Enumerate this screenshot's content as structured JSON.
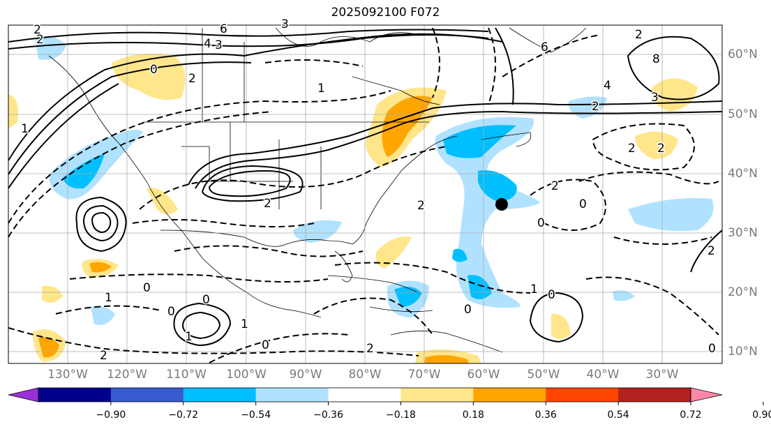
{
  "title": "2025092100 F072",
  "lon_labels": [
    "130°W",
    "120°W",
    "110°W",
    "100°W",
    "90°W",
    "80°W",
    "70°W",
    "60°W",
    "50°W",
    "40°W",
    "30°W"
  ],
  "lat_labels": [
    "60°N",
    "50°N",
    "40°N",
    "30°N",
    "20°N",
    "10°N"
  ],
  "colorbar": {
    "ticks": [
      "−0.90",
      "−0.72",
      "−0.54",
      "−0.36",
      "−0.18",
      "0.18",
      "0.36",
      "0.54",
      "0.72",
      "0.90"
    ],
    "colors": [
      "#9b30d8",
      "#00008b",
      "#3a5bd0",
      "#00bfff",
      "#b0e2ff",
      "#ffffff",
      "#ffe68a",
      "#ffa500",
      "#ff4500",
      "#b22222",
      "#ff88aa"
    ]
  },
  "contour_labels": [
    "2",
    "6",
    "4",
    "3",
    "0",
    "2",
    "3",
    "1",
    "6",
    "2",
    "8",
    "3",
    "4",
    "2",
    "2",
    "2",
    "2",
    "0",
    "0",
    "2",
    "2",
    "1",
    "0",
    "1",
    "0",
    "1",
    "2",
    "0",
    "2",
    "0",
    "0",
    "2",
    "1",
    "0",
    "0",
    "2",
    "1"
  ],
  "marker": "black-dot"
}
